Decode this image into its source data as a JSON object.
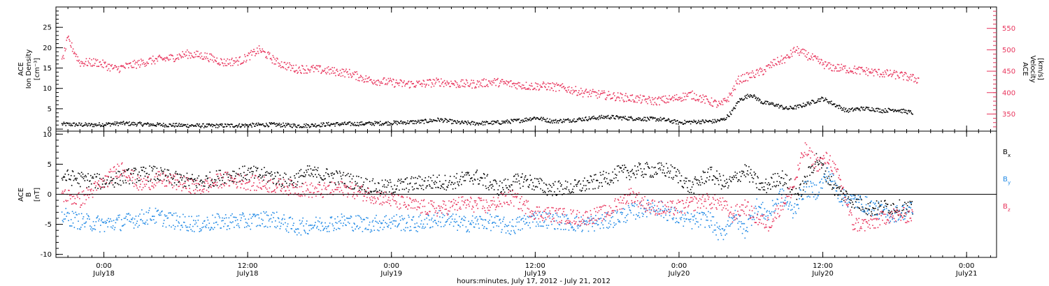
{
  "xlabel": "hours:minutes, July 17, 2012 - July 21, 2012",
  "x_ticks": [
    {
      "x": 18.0,
      "time": "0:00",
      "date": "July18"
    },
    {
      "x": 30.0,
      "time": "12:00",
      "date": "July18"
    },
    {
      "x": 42.0,
      "time": "0:00",
      "date": "July19"
    },
    {
      "x": 54.0,
      "time": "12:00",
      "date": "July19"
    },
    {
      "x": 66.0,
      "time": "0:00",
      "date": "July20"
    },
    {
      "x": 78.0,
      "time": "12:00",
      "date": "July20"
    },
    {
      "x": 90.0,
      "time": "0:00",
      "date": "July21"
    }
  ],
  "colors": {
    "black": "#000000",
    "pink": "#e8345c",
    "blue": "#1e88e5"
  },
  "chart_data": [
    {
      "type": "scatter",
      "x_unit": "hours since July 17, 2012 00:00",
      "xlim": [
        14.0,
        92.5
      ],
      "left_axis": {
        "label_lines": [
          "ACE",
          "Ion Density",
          "[cm⁻³]"
        ],
        "ylim": [
          -0.5,
          30
        ],
        "ticks": [
          0,
          5,
          10,
          15,
          20,
          25
        ]
      },
      "right_axis": {
        "label_lines": [
          "ACE",
          "Velocity",
          "[km/s]"
        ],
        "ylim": [
          310,
          600
        ],
        "ticks": [
          350,
          400,
          450,
          500,
          550
        ]
      },
      "series": [
        {
          "name": "Ion Density",
          "axis": "left",
          "color": "#000000",
          "x": [
            14.5,
            17.0,
            19.5,
            22.0,
            24.5,
            27.0,
            29.5,
            32.0,
            34.5,
            37.0,
            39.5,
            42.0,
            44.5,
            46.0,
            47.5,
            49.0,
            51.0,
            53.0,
            54.0,
            55.5,
            57.0,
            58.5,
            60.0,
            61.5,
            63.0,
            64.5,
            66.0,
            67.5,
            69.0,
            69.8,
            70.5,
            71.0,
            72.0,
            73.0,
            74.0,
            75.0,
            76.0,
            77.0,
            78.0,
            79.0,
            80.0,
            81.0,
            82.0,
            83.0,
            84.0,
            85.5
          ],
          "y": [
            1.2,
            1.0,
            1.4,
            1.1,
            0.9,
            0.8,
            0.9,
            1.1,
            0.8,
            1.2,
            1.3,
            1.5,
            1.8,
            2.3,
            1.6,
            1.4,
            1.6,
            2.2,
            2.8,
            1.9,
            2.2,
            2.6,
            3.0,
            2.7,
            2.5,
            2.4,
            1.6,
            1.8,
            1.9,
            2.4,
            4.5,
            7.0,
            8.5,
            6.5,
            6.0,
            5.0,
            5.5,
            6.5,
            7.5,
            6.0,
            4.5,
            5.0,
            5.0,
            4.5,
            4.8,
            4.0
          ],
          "spread": 0.5
        },
        {
          "name": "Velocity",
          "axis": "right",
          "color": "#e8345c",
          "x": [
            14.5,
            15.0,
            16.0,
            17.5,
            19.0,
            20.5,
            22.0,
            23.5,
            25.0,
            26.5,
            28.0,
            29.5,
            31.0,
            32.5,
            34.0,
            35.5,
            37.0,
            38.5,
            40.0,
            41.5,
            43.0,
            44.5,
            46.0,
            47.5,
            49.0,
            50.5,
            52.0,
            53.5,
            55.0,
            56.5,
            58.0,
            59.5,
            61.0,
            62.5,
            64.0,
            65.5,
            67.0,
            68.5,
            69.5,
            70.2,
            71.0,
            72.0,
            73.0,
            74.0,
            75.0,
            75.7,
            76.5,
            77.5,
            78.5,
            80.0,
            81.5,
            83.0,
            84.5,
            86.0
          ],
          "y": [
            470,
            525,
            470,
            470,
            455,
            465,
            475,
            480,
            490,
            485,
            470,
            475,
            500,
            470,
            455,
            455,
            450,
            445,
            430,
            425,
            420,
            420,
            425,
            420,
            420,
            425,
            420,
            415,
            415,
            410,
            400,
            395,
            390,
            385,
            380,
            385,
            395,
            380,
            370,
            390,
            430,
            440,
            450,
            470,
            480,
            500,
            490,
            475,
            460,
            455,
            450,
            445,
            440,
            430
          ],
          "spread": 10
        }
      ]
    },
    {
      "type": "scatter",
      "x_unit": "hours since July 17, 2012 00:00",
      "xlim": [
        14.0,
        92.5
      ],
      "left_axis": {
        "label_lines": [
          "ACE",
          "B",
          "[nT]"
        ],
        "ylim": [
          -10.5,
          10.5
        ],
        "ticks": [
          -10,
          -5,
          0,
          5,
          10
        ]
      },
      "zero_line": true,
      "series": [
        {
          "name": "Bx",
          "legend_main": "B",
          "legend_sub": "x",
          "color": "#000000",
          "x": [
            14.5,
            16.0,
            18.0,
            20.0,
            22.0,
            24.0,
            26.0,
            28.0,
            30.0,
            32.0,
            33.5,
            35.0,
            37.0,
            39.0,
            41.0,
            43.0,
            45.0,
            47.0,
            49.0,
            51.0,
            53.0,
            55.0,
            57.0,
            59.0,
            61.0,
            63.0,
            65.0,
            66.0,
            67.0,
            68.5,
            70.0,
            71.5,
            73.0,
            74.5,
            76.0,
            77.5,
            79.0,
            80.5,
            82.0,
            83.5,
            85.5
          ],
          "y": [
            3.0,
            2.5,
            2.0,
            3.0,
            3.5,
            2.5,
            2.0,
            3.0,
            3.5,
            3.0,
            2.0,
            3.5,
            3.0,
            2.0,
            1.0,
            1.5,
            2.0,
            2.0,
            3.0,
            1.0,
            2.5,
            1.0,
            1.0,
            2.0,
            3.5,
            4.0,
            4.0,
            3.0,
            1.0,
            3.5,
            1.5,
            4.0,
            1.0,
            3.0,
            0.0,
            6.0,
            1.0,
            -1.0,
            -2.5,
            -2.0,
            -2.5
          ],
          "spread": 1.3
        },
        {
          "name": "By",
          "legend_main": "B",
          "legend_sub": "y",
          "color": "#1e88e5",
          "x": [
            14.5,
            16.0,
            18.0,
            20.0,
            22.0,
            24.0,
            26.0,
            28.0,
            30.0,
            32.0,
            34.0,
            36.0,
            38.0,
            40.0,
            42.0,
            44.0,
            46.0,
            48.0,
            50.0,
            52.0,
            54.0,
            56.0,
            58.0,
            60.0,
            62.0,
            64.0,
            65.5,
            67.0,
            68.5,
            69.5,
            70.5,
            71.5,
            72.5,
            73.5,
            74.5,
            75.5,
            76.5,
            77.5,
            78.5,
            79.5,
            80.5,
            82.0,
            83.5,
            85.5
          ],
          "y": [
            -3.5,
            -4.5,
            -5.0,
            -4.5,
            -3.5,
            -4.5,
            -5.0,
            -4.5,
            -4.5,
            -4.0,
            -5.5,
            -5.0,
            -4.5,
            -5.0,
            -4.5,
            -5.0,
            -4.0,
            -5.0,
            -4.5,
            -5.5,
            -4.0,
            -4.5,
            -5.0,
            -4.5,
            -3.0,
            -2.0,
            -3.5,
            -4.5,
            -4.0,
            -7.0,
            -3.5,
            -6.0,
            -2.0,
            -3.5,
            0.0,
            -3.0,
            1.0,
            0.5,
            3.5,
            -0.5,
            -1.0,
            -2.0,
            -3.5,
            -2.5
          ],
          "spread": 1.4
        },
        {
          "name": "Bz",
          "legend_main": "B",
          "legend_sub": "z",
          "color": "#e8345c",
          "x": [
            14.5,
            16.0,
            18.0,
            19.5,
            21.0,
            22.5,
            24.0,
            26.0,
            28.0,
            30.0,
            32.0,
            34.0,
            36.0,
            38.0,
            40.0,
            42.0,
            44.0,
            46.0,
            48.0,
            50.0,
            52.0,
            54.0,
            56.0,
            58.0,
            60.0,
            62.0,
            63.5,
            65.0,
            66.5,
            68.0,
            69.5,
            70.5,
            71.5,
            72.5,
            73.5,
            74.5,
            75.5,
            76.5,
            77.5,
            78.5,
            79.5,
            80.5,
            82.0,
            83.5,
            85.5
          ],
          "y": [
            0.0,
            -1.0,
            2.0,
            4.5,
            1.5,
            2.5,
            2.0,
            1.0,
            2.5,
            2.0,
            1.5,
            1.0,
            0.5,
            1.0,
            0.0,
            -1.0,
            -2.0,
            -2.5,
            -1.5,
            -2.0,
            -0.5,
            -3.0,
            -3.5,
            -4.0,
            -3.0,
            0.0,
            -2.0,
            -2.5,
            -2.0,
            -1.0,
            -1.5,
            -3.5,
            -2.0,
            -4.0,
            -5.0,
            -2.0,
            1.0,
            7.5,
            5.0,
            6.0,
            2.0,
            -5.0,
            -5.0,
            -3.5,
            -3.5
          ],
          "spread": 1.3
        }
      ]
    }
  ]
}
